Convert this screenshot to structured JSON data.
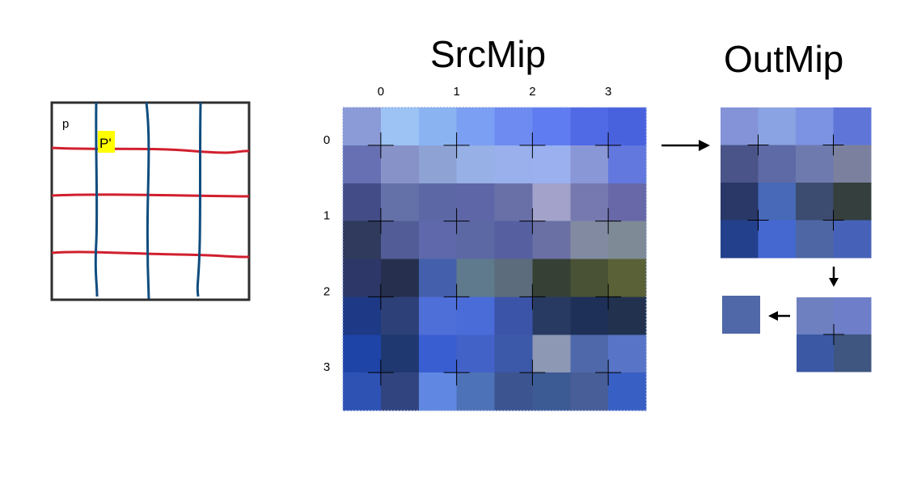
{
  "sketch": {
    "label_p": "p",
    "label_p_prime": "P'",
    "highlight_color": "#ffff00",
    "grid_line_color": "#d11f2e",
    "column_line_color": "#0f4c7e",
    "frame_color": "#2e2e2e"
  },
  "src_mip": {
    "title": "SrcMip",
    "column_labels": [
      "0",
      "1",
      "2",
      "3"
    ],
    "row_labels": [
      "0",
      "1",
      "2",
      "3"
    ],
    "pixel_colors": [
      [
        "#8a9bd8",
        "#9cc3f4",
        "#8ab3f2",
        "#7b9ff2",
        "#6d8bf0",
        "#5f7df0",
        "#5069e4",
        "#4862de"
      ],
      [
        "#6670b2",
        "#8793c8",
        "#8fa2d4",
        "#97b0e6",
        "#99b0ec",
        "#9ab0ef",
        "#8a97d6",
        "#6278de"
      ],
      [
        "#434c86",
        "#6470a8",
        "#5c68a6",
        "#5e66a8",
        "#6970a8",
        "#a2a2ca",
        "#7678b0",
        "#6868a8"
      ],
      [
        "#2f3a5c",
        "#525c96",
        "#5e68aa",
        "#5c68a4",
        "#5660a0",
        "#6a70a4",
        "#818aa0",
        "#7e8a96"
      ],
      [
        "#2d3868",
        "#26304e",
        "#4460ac",
        "#5e7a8c",
        "#5c6c7c",
        "#374035",
        "#4a5236",
        "#5b6136"
      ],
      [
        "#1e3a86",
        "#2d4078",
        "#4e6ed8",
        "#4a6cd8",
        "#3c54a8",
        "#283a62",
        "#1e3058",
        "#22324e"
      ],
      [
        "#1f44a8",
        "#203870",
        "#385ed2",
        "#4262c8",
        "#3c58a8",
        "#8c98b4",
        "#4e68aa",
        "#5874c6"
      ],
      [
        "#2d52b4",
        "#324480",
        "#6088e2",
        "#4e72b8",
        "#3c5490",
        "#3c5a94",
        "#485e98",
        "#3860c4"
      ]
    ]
  },
  "out_mip": {
    "title": "OutMip",
    "level1_colors": [
      [
        "#8493d8",
        "#8aa3e2",
        "#7c93e4",
        "#5f76d8"
      ],
      [
        "#4a5488",
        "#5e6aa6",
        "#6e7aae",
        "#7a809e"
      ],
      [
        "#2a3868",
        "#4868b8",
        "#3c4c70",
        "#343f3e"
      ],
      [
        "#23408c",
        "#4468d0",
        "#4e66a4",
        "#4662b8"
      ]
    ],
    "level2_colors": [
      [
        "#6e80c0",
        "#6e7ec8"
      ],
      [
        "#3a58a4",
        "#3e5680"
      ]
    ],
    "level3_color": "#5068a8"
  }
}
